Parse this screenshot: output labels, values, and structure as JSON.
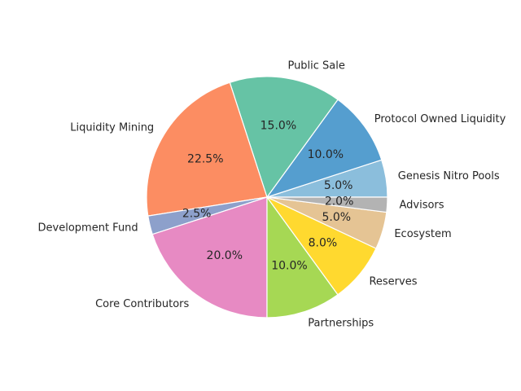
{
  "chart_data": {
    "type": "pie",
    "title": "",
    "start_angle_deg": 0,
    "direction": "counterclockwise",
    "slices": [
      {
        "label": "Genesis Nitro Pools",
        "value": 5.0,
        "pct_text": "5.0%",
        "color": "#8bbedc"
      },
      {
        "label": "Protocol Owned Liquidity",
        "value": 10.0,
        "pct_text": "10.0%",
        "color": "#559ecf"
      },
      {
        "label": "Public Sale",
        "value": 15.0,
        "pct_text": "15.0%",
        "color": "#66c3a5"
      },
      {
        "label": "Liquidity Mining",
        "value": 22.5,
        "pct_text": "22.5%",
        "color": "#fc8d62"
      },
      {
        "label": "Development Fund",
        "value": 2.5,
        "pct_text": "2.5%",
        "color": "#8da0cb"
      },
      {
        "label": "Core Contributors",
        "value": 20.0,
        "pct_text": "20.0%",
        "color": "#e78ac3"
      },
      {
        "label": "Partnerships",
        "value": 10.0,
        "pct_text": "10.0%",
        "color": "#a6d854"
      },
      {
        "label": "Reserves",
        "value": 8.0,
        "pct_text": "8.0%",
        "color": "#ffd92f"
      },
      {
        "label": "Ecosystem",
        "value": 5.0,
        "pct_text": "5.0%",
        "color": "#e5c494"
      },
      {
        "label": "Advisors",
        "value": 2.0,
        "pct_text": "2.0%",
        "color": "#b3b3b3"
      }
    ]
  }
}
